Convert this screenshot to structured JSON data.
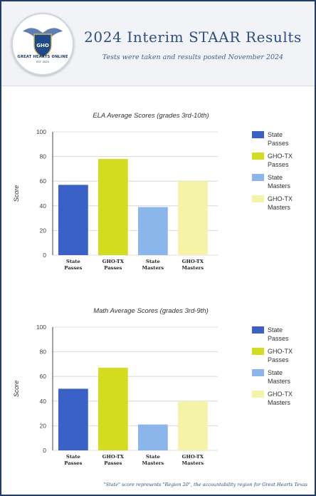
{
  "header": {
    "title": "2024 Interim STAAR Results",
    "subtitle": "Tests were taken and results posted November 2024",
    "logo_text": "GREAT HEARTS ONLINE",
    "logo_monogram": "GHO",
    "logo_est": "EST. 2020"
  },
  "footnote": "\"State\" score represents \"Region 20\", the accountability region for Great Hearts Texas",
  "colors": {
    "state_passes": "#3a62c6",
    "gho_passes": "#d3dc1e",
    "state_masters": "#8ab6ec",
    "gho_masters": "#f4f3a6",
    "header_title": "#2a4f86"
  },
  "chart_data": [
    {
      "type": "bar",
      "title": "ELA Average Scores (grades 3rd-10th)",
      "ylabel": "Score",
      "xlabel": "",
      "ylim": [
        0,
        100
      ],
      "yticks": [
        "0",
        "20",
        "40",
        "60",
        "80",
        "100"
      ],
      "grid": true,
      "legend_position": "right",
      "categories": [
        [
          "State",
          "Passes"
        ],
        [
          "GHO-TX",
          "Passes"
        ],
        [
          "State",
          "Masters"
        ],
        [
          "GHO-TX",
          "Masters"
        ]
      ],
      "legend": [
        [
          "State",
          "Passes"
        ],
        [
          "GHO-TX",
          "Passes"
        ],
        [
          "State",
          "Masters"
        ],
        [
          "GHO-TX",
          "Masters"
        ]
      ],
      "values": [
        57,
        78,
        39,
        60
      ]
    },
    {
      "type": "bar",
      "title": "Math Average Scores (grades 3rd-9th)",
      "ylabel": "Score",
      "xlabel": "",
      "ylim": [
        0,
        100
      ],
      "yticks": [
        "0",
        "20",
        "40",
        "60",
        "80",
        "100"
      ],
      "grid": true,
      "legend_position": "right",
      "categories": [
        [
          "State",
          "Passes"
        ],
        [
          "GHO-TX",
          "Passes"
        ],
        [
          "State",
          "Masters"
        ],
        [
          "GHO-TX",
          "Masters"
        ]
      ],
      "legend": [
        [
          "State",
          "Passes"
        ],
        [
          "GHO-TX",
          "Passes"
        ],
        [
          "State",
          "Masters"
        ],
        [
          "GHO-TX",
          "Masters"
        ]
      ],
      "values": [
        50,
        67,
        21,
        40
      ]
    }
  ]
}
